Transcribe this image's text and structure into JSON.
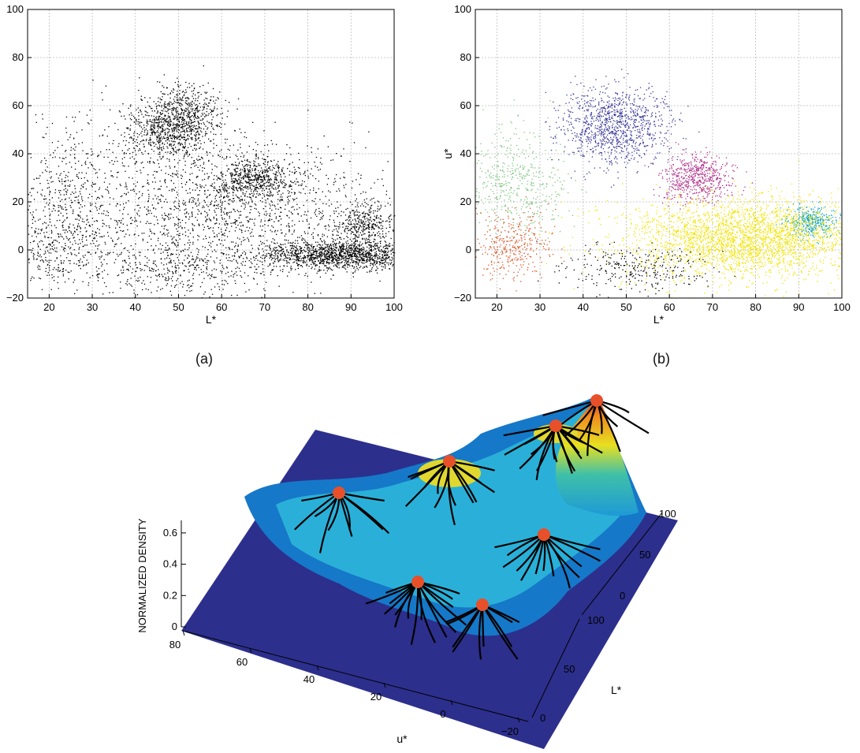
{
  "panels": {
    "a_label": "(a)",
    "b_label": "(b)"
  },
  "chart_data": [
    {
      "type": "scatter",
      "panel": "(a)",
      "xlabel": "L*",
      "ylabel": "",
      "xlim": [
        15,
        100
      ],
      "ylim": [
        -20,
        100
      ],
      "xticks": [
        20,
        30,
        40,
        50,
        60,
        70,
        80,
        90,
        100
      ],
      "yticks": [
        -20,
        0,
        20,
        40,
        60,
        80,
        100
      ],
      "grid": true,
      "marker_color": "#000000",
      "clusters": [
        {
          "center": [
            47,
            50
          ],
          "spread": [
            5,
            6
          ],
          "count": 700
        },
        {
          "center": [
            52,
            58
          ],
          "spread": [
            4,
            6
          ],
          "count": 400
        },
        {
          "center": [
            67,
            30
          ],
          "spread": [
            4,
            4
          ],
          "count": 500
        },
        {
          "center": [
            93,
            10
          ],
          "spread": [
            4,
            4
          ],
          "count": 400
        },
        {
          "center": [
            88,
            -2
          ],
          "spread": [
            10,
            3
          ],
          "count": 1500
        },
        {
          "center": [
            60,
            18
          ],
          "spread": [
            18,
            14
          ],
          "count": 1600
        },
        {
          "center": [
            25,
            25
          ],
          "spread": [
            8,
            15
          ],
          "count": 500
        },
        {
          "center": [
            22,
            0
          ],
          "spread": [
            6,
            8
          ],
          "count": 300
        },
        {
          "center": [
            50,
            -8
          ],
          "spread": [
            10,
            6
          ],
          "count": 400
        }
      ]
    },
    {
      "type": "scatter",
      "panel": "(b)",
      "xlabel": "L*",
      "ylabel": "u*",
      "xlim": [
        15,
        100
      ],
      "ylim": [
        -20,
        100
      ],
      "xticks": [
        20,
        30,
        40,
        50,
        60,
        70,
        80,
        90,
        100
      ],
      "yticks": [
        -20,
        0,
        20,
        40,
        60,
        80,
        100
      ],
      "grid": true,
      "series": [
        {
          "color": "#3a3a9a",
          "center": [
            47,
            52
          ],
          "spread": [
            6,
            8
          ],
          "count": 1100
        },
        {
          "color": "#b0308a",
          "center": [
            66,
            30
          ],
          "spread": [
            4,
            5
          ],
          "count": 600
        },
        {
          "color": "#1aa8c0",
          "center": [
            93,
            12
          ],
          "spread": [
            3,
            3
          ],
          "count": 400
        },
        {
          "color": "#f2e400",
          "center": [
            78,
            5
          ],
          "spread": [
            14,
            8
          ],
          "count": 3000
        },
        {
          "color": "#7cc47c",
          "center": [
            24,
            28
          ],
          "spread": [
            6,
            10
          ],
          "count": 500
        },
        {
          "color": "#e05020",
          "center": [
            23,
            3
          ],
          "spread": [
            5,
            7
          ],
          "count": 350
        },
        {
          "color": "#000000",
          "center": [
            52,
            -8
          ],
          "spread": [
            8,
            5
          ],
          "count": 300
        }
      ]
    },
    {
      "type": "surface",
      "panel": "",
      "zlabel": "NORMALIZED DENSITY",
      "xlabel": "u*",
      "ylabel": "L*",
      "zticks": [
        "0",
        "0.2",
        "0.4",
        "0.6"
      ],
      "uticks": [
        "80",
        "60",
        "40",
        "20",
        "0",
        "−20"
      ],
      "lticks": [
        "0",
        "50",
        "100"
      ],
      "vticks": [
        "0",
        "50",
        "100"
      ],
      "peaks": 7,
      "peak_color": "#e8502a"
    }
  ]
}
